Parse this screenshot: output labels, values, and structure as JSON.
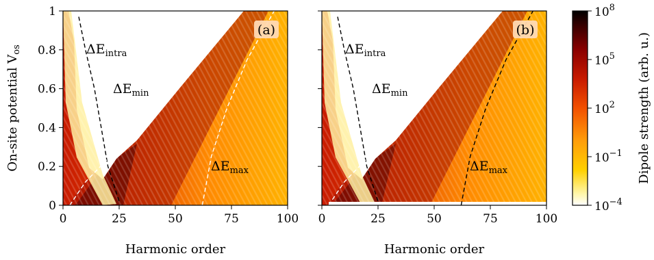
{
  "chart_data": [
    {
      "type": "heatmap",
      "panel_label": "(a)",
      "xlabel": "Harmonic order",
      "ylabel": "On-site potential V",
      "ylabel_sub": "os",
      "xlim": [
        0,
        100
      ],
      "ylim": [
        0,
        1
      ],
      "xticks": [
        "0",
        "25",
        "50",
        "75",
        "100"
      ],
      "yticks": [
        "0",
        "0.2",
        "0.4",
        "0.6",
        "0.8",
        "1"
      ],
      "curves": [
        {
          "name": "intra",
          "label": "ΔE",
          "sub": "intra",
          "stroke": "#000000",
          "points": [
            [
              7,
              0.97
            ],
            [
              10,
              0.8
            ],
            [
              14,
              0.6
            ],
            [
              17,
              0.4
            ],
            [
              20,
              0.2
            ],
            [
              25,
              0.02
            ]
          ]
        },
        {
          "name": "min",
          "label": "ΔE",
          "sub": "min",
          "stroke": "#ffffff",
          "points": [
            [
              3,
              0.0
            ],
            [
              10,
              0.12
            ],
            [
              25,
              0.3
            ],
            [
              50,
              0.58
            ],
            [
              76,
              1.0
            ]
          ]
        },
        {
          "name": "max",
          "label": "ΔE",
          "sub": "max",
          "stroke": "#ffffff",
          "points": [
            [
              62,
              0.0
            ],
            [
              66,
              0.25
            ],
            [
              73,
              0.5
            ],
            [
              82,
              0.75
            ],
            [
              94,
              1.0
            ]
          ]
        }
      ]
    },
    {
      "type": "heatmap",
      "panel_label": "(b)",
      "xlabel": "Harmonic order",
      "xlim": [
        0,
        100
      ],
      "ylim": [
        0,
        1
      ],
      "xticks": [
        "0",
        "25",
        "50",
        "75",
        "100"
      ],
      "curves": [
        {
          "name": "intra",
          "label": "ΔE",
          "sub": "intra",
          "stroke": "#000000",
          "points": [
            [
              7,
              0.97
            ],
            [
              10,
              0.8
            ],
            [
              14,
              0.6
            ],
            [
              17,
              0.4
            ],
            [
              20,
              0.2
            ],
            [
              25,
              0.02
            ]
          ]
        },
        {
          "name": "min",
          "label": "ΔE",
          "sub": "min",
          "stroke": "#ffffff",
          "points": [
            [
              3,
              0.0
            ],
            [
              10,
              0.12
            ],
            [
              25,
              0.3
            ],
            [
              50,
              0.58
            ],
            [
              76,
              1.0
            ]
          ]
        },
        {
          "name": "max",
          "label": "ΔE",
          "sub": "max",
          "stroke": "#000000",
          "points": [
            [
              62,
              0.0
            ],
            [
              66,
              0.25
            ],
            [
              73,
              0.5
            ],
            [
              82,
              0.75
            ],
            [
              94,
              1.0
            ]
          ]
        }
      ]
    }
  ],
  "colorbar": {
    "label": "Dipole strength (arb. u.)",
    "scale": "log",
    "ticks": [
      {
        "base": "10",
        "exp": "8",
        "value": 8
      },
      {
        "base": "10",
        "exp": "5",
        "value": 5
      },
      {
        "base": "10",
        "exp": "2",
        "value": 2
      },
      {
        "base": "10",
        "exp": "−1",
        "value": -1
      },
      {
        "base": "10",
        "exp": "−4",
        "value": -4
      }
    ],
    "range": [
      -4,
      8
    ],
    "colormap": [
      "#ffffff",
      "#fff6a8",
      "#ffd000",
      "#ff9e0a",
      "#f25000",
      "#c81a00",
      "#8a0000",
      "#3a0000",
      "#000000"
    ]
  }
}
